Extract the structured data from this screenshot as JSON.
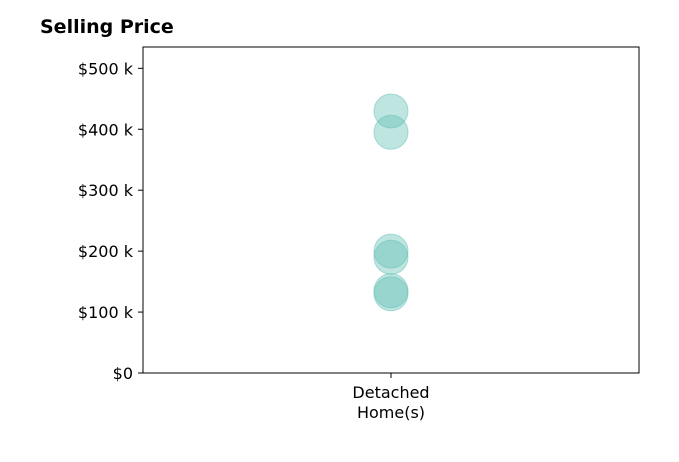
{
  "chart_data": {
    "type": "scatter",
    "title": "Selling Price",
    "xlabel": "",
    "ylabel": "",
    "categories": [
      "Detached\nHome(s)"
    ],
    "y_tick_labels": [
      "$0",
      "$100 k",
      "$200 k",
      "$300 k",
      "$400 k",
      "$500 k"
    ],
    "y_ticks": [
      0,
      100000,
      200000,
      300000,
      400000,
      500000
    ],
    "ylim": [
      0,
      535000
    ],
    "grid": false,
    "marker_color": "#5fbfb3",
    "series": [
      {
        "category": "Detached\nHome(s)",
        "values": [
          430000,
          395000,
          200000,
          190000,
          135000,
          130000
        ]
      }
    ]
  }
}
